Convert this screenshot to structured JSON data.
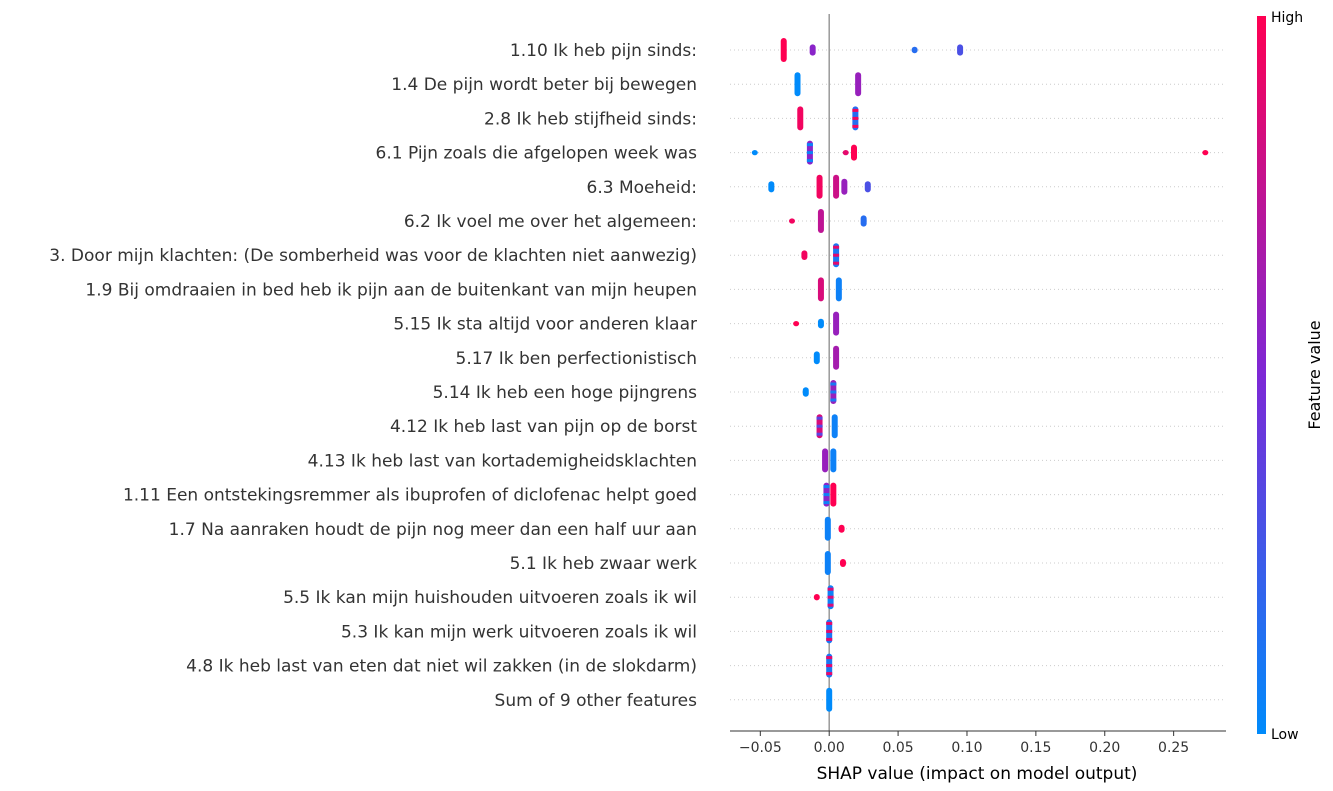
{
  "chart_data": {
    "type": "scatter",
    "subtype": "shap-beeswarm",
    "title": "",
    "xlabel": "SHAP value (impact on model output)",
    "xlim": [
      -0.072,
      0.288
    ],
    "xticks": [
      -0.05,
      0.0,
      0.05,
      0.1,
      0.15,
      0.2,
      0.25
    ],
    "xtick_labels": [
      "−0.05",
      "0.00",
      "0.05",
      "0.10",
      "0.15",
      "0.20",
      "0.25"
    ],
    "zero_line": true,
    "grid": false,
    "colorbar": {
      "title": "Feature value",
      "high_label": "High",
      "low_label": "Low",
      "colors": [
        "#008bfb",
        "#7d28d6",
        "#ff0052"
      ]
    },
    "features": [
      {
        "name": "1.10 Ik heb pijn sinds:",
        "points": [
          {
            "x": -0.033,
            "v": 1.0,
            "s": 0.03
          },
          {
            "x": -0.012,
            "v": 0.55,
            "s": 0.014
          },
          {
            "x": 0.062,
            "v": 0.15,
            "s": 0.008
          },
          {
            "x": 0.095,
            "v": 0.3,
            "s": 0.014
          }
        ]
      },
      {
        "name": "1.4 De pijn wordt beter bij bewegen",
        "points": [
          {
            "x": -0.023,
            "v": 0.0,
            "s": 0.03
          },
          {
            "x": 0.021,
            "v": 0.6,
            "s": 0.03
          }
        ]
      },
      {
        "name": "2.8 Ik heb stijfheid sinds:",
        "points": [
          {
            "x": -0.021,
            "v": 0.95,
            "s": 0.03
          },
          {
            "x": 0.019,
            "v": 0.15,
            "s": 0.03,
            "mixed": true
          }
        ]
      },
      {
        "name": "6.1 Pijn zoals die afgelopen week was",
        "points": [
          {
            "x": -0.054,
            "v": 0.0,
            "s": 0.005
          },
          {
            "x": -0.014,
            "v": 0.55,
            "s": 0.03,
            "mixed": true
          },
          {
            "x": 0.012,
            "v": 0.9,
            "s": 0.006
          },
          {
            "x": 0.018,
            "v": 1.0,
            "s": 0.02
          },
          {
            "x": 0.273,
            "v": 1.0,
            "s": 0.005
          }
        ]
      },
      {
        "name": "6.3 Moeheid:",
        "points": [
          {
            "x": -0.042,
            "v": 0.0,
            "s": 0.014
          },
          {
            "x": -0.007,
            "v": 0.95,
            "s": 0.03
          },
          {
            "x": 0.005,
            "v": 0.8,
            "s": 0.03
          },
          {
            "x": 0.011,
            "v": 0.6,
            "s": 0.02
          },
          {
            "x": 0.028,
            "v": 0.3,
            "s": 0.014
          }
        ]
      },
      {
        "name": "6.2 Ik voel me over het algemeen:",
        "points": [
          {
            "x": -0.027,
            "v": 0.95,
            "s": 0.005
          },
          {
            "x": -0.006,
            "v": 0.75,
            "s": 0.03
          },
          {
            "x": 0.025,
            "v": 0.15,
            "s": 0.014
          }
        ]
      },
      {
        "name": "3. Door mijn klachten: (De somberheid was voor de klachten niet aanwezig)",
        "points": [
          {
            "x": -0.018,
            "v": 0.95,
            "s": 0.012
          },
          {
            "x": 0.005,
            "v": 0.1,
            "s": 0.03,
            "mixed": true
          }
        ]
      },
      {
        "name": "1.9 Bij omdraaien in bed heb ik pijn aan de buitenkant van mijn heupen",
        "points": [
          {
            "x": -0.006,
            "v": 0.85,
            "s": 0.03
          },
          {
            "x": 0.007,
            "v": 0.05,
            "s": 0.03
          }
        ]
      },
      {
        "name": "5.15 Ik sta altijd voor anderen klaar",
        "points": [
          {
            "x": -0.024,
            "v": 1.0,
            "s": 0.006
          },
          {
            "x": -0.006,
            "v": 0.0,
            "s": 0.012
          },
          {
            "x": 0.005,
            "v": 0.6,
            "s": 0.03
          }
        ]
      },
      {
        "name": "5.17 Ik ben perfectionistisch",
        "points": [
          {
            "x": -0.009,
            "v": 0.0,
            "s": 0.016
          },
          {
            "x": 0.005,
            "v": 0.65,
            "s": 0.03
          }
        ]
      },
      {
        "name": "5.14 Ik heb een hoge pijngrens",
        "points": [
          {
            "x": -0.017,
            "v": 0.0,
            "s": 0.012
          },
          {
            "x": 0.003,
            "v": 0.6,
            "s": 0.03,
            "mixed": true
          }
        ]
      },
      {
        "name": "4.12 Ik heb last van pijn op de borst",
        "points": [
          {
            "x": -0.007,
            "v": 0.85,
            "s": 0.03,
            "mixed": true
          },
          {
            "x": 0.004,
            "v": 0.05,
            "s": 0.03
          }
        ]
      },
      {
        "name": "4.13 Ik heb last van kortademigheidsklachten",
        "points": [
          {
            "x": -0.003,
            "v": 0.6,
            "s": 0.03
          },
          {
            "x": 0.003,
            "v": 0.05,
            "s": 0.03
          }
        ]
      },
      {
        "name": "1.11 Een ontstekingsremmer als ibuprofen of diclofenac helpt goed",
        "points": [
          {
            "x": -0.002,
            "v": 0.55,
            "s": 0.03,
            "mixed": true
          },
          {
            "x": 0.003,
            "v": 1.0,
            "s": 0.03
          }
        ]
      },
      {
        "name": "1.7 Na aanraken houdt de pijn nog meer dan een half uur aan",
        "points": [
          {
            "x": -0.001,
            "v": 0.05,
            "s": 0.03
          },
          {
            "x": 0.009,
            "v": 1.0,
            "s": 0.01
          }
        ]
      },
      {
        "name": "5.1 Ik heb zwaar werk",
        "points": [
          {
            "x": -0.001,
            "v": 0.05,
            "s": 0.03
          },
          {
            "x": 0.01,
            "v": 1.0,
            "s": 0.01
          }
        ]
      },
      {
        "name": "5.5 Ik kan mijn huishouden uitvoeren zoals ik wil",
        "points": [
          {
            "x": -0.009,
            "v": 1.0,
            "s": 0.008
          },
          {
            "x": 0.001,
            "v": 0.05,
            "s": 0.03,
            "mixed": true
          }
        ]
      },
      {
        "name": "5.3 Ik kan mijn werk uitvoeren zoals ik wil",
        "points": [
          {
            "x": 0.0,
            "v": 0.1,
            "s": 0.03,
            "mixed": true
          }
        ]
      },
      {
        "name": "4.8 Ik heb last van eten dat niet wil zakken (in de slokdarm)",
        "points": [
          {
            "x": 0.0,
            "v": 0.1,
            "s": 0.03,
            "mixed": true
          }
        ]
      },
      {
        "name": "Sum of 9 other features",
        "points": [
          {
            "x": 0.0,
            "v": 0.0,
            "s": 0.03
          }
        ]
      }
    ]
  }
}
